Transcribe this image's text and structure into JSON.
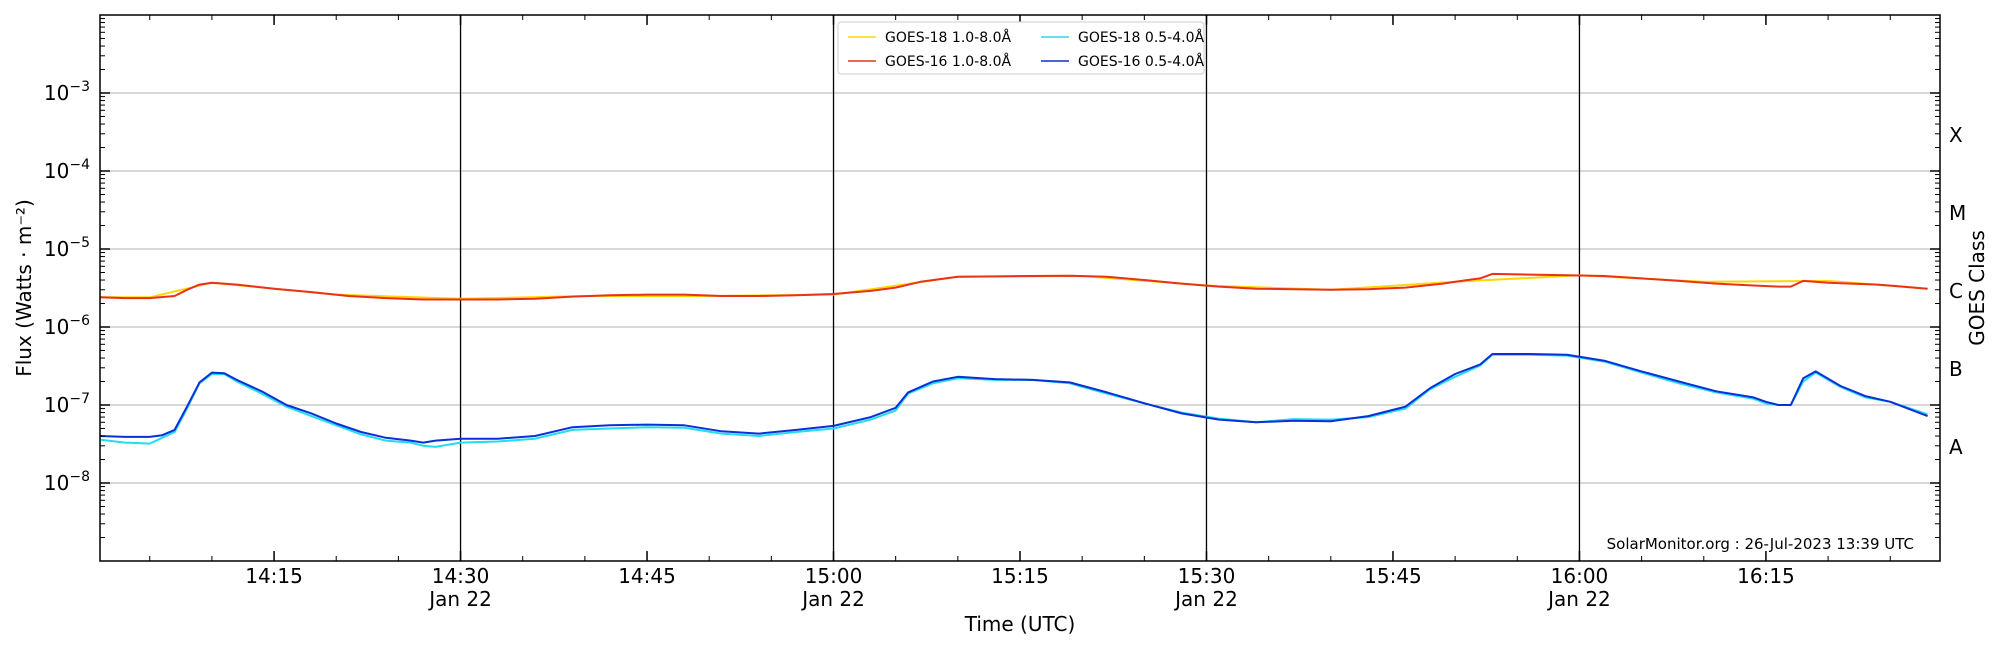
{
  "chart_data": {
    "type": "line",
    "title": "",
    "xlabel": "Time (UTC)",
    "ylabel": "Flux (Watts · m⁻²)",
    "ylabel_right": "GOES Class",
    "y_scale": "log",
    "ylim": [
      1e-09,
      0.01
    ],
    "xlim": [
      "2023-01-22 14:01",
      "2023-01-22 16:29"
    ],
    "grid": "horizontal",
    "legend_position": "top-center",
    "credit": "SolarMonitor.org : 26-Jul-2023 13:39 UTC",
    "y_ticks": [
      {
        "value": 1e-08,
        "base": "10",
        "exp": "−8"
      },
      {
        "value": 1e-07,
        "base": "10",
        "exp": "−7"
      },
      {
        "value": 1e-06,
        "base": "10",
        "exp": "−6"
      },
      {
        "value": 1e-05,
        "base": "10",
        "exp": "−5"
      },
      {
        "value": 0.0001,
        "base": "10",
        "exp": "−4"
      },
      {
        "value": 0.001,
        "base": "10",
        "exp": "−3"
      }
    ],
    "x_ticks": [
      {
        "time": "14:15",
        "label": "14:15",
        "date": ""
      },
      {
        "time": "14:30",
        "label": "14:30",
        "date": "Jan 22"
      },
      {
        "time": "14:45",
        "label": "14:45",
        "date": ""
      },
      {
        "time": "15:00",
        "label": "15:00",
        "date": "Jan 22"
      },
      {
        "time": "15:15",
        "label": "15:15",
        "date": ""
      },
      {
        "time": "15:30",
        "label": "15:30",
        "date": "Jan 22"
      },
      {
        "time": "15:45",
        "label": "15:45",
        "date": ""
      },
      {
        "time": "16:00",
        "label": "16:00",
        "date": "Jan 22"
      },
      {
        "time": "16:15",
        "label": "16:15",
        "date": ""
      }
    ],
    "day_lines": [
      "14:30",
      "15:00",
      "15:30",
      "16:00"
    ],
    "goes_classes": [
      {
        "label": "A",
        "value": 3e-08
      },
      {
        "label": "B",
        "value": 3e-07
      },
      {
        "label": "C",
        "value": 3e-06
      },
      {
        "label": "M",
        "value": 3e-05
      },
      {
        "label": "X",
        "value": 0.0003
      }
    ],
    "series": [
      {
        "name": "GOES-18 1.0-8.0Å",
        "color": "#ffd700",
        "x": [
          "14:01",
          "14:05",
          "14:10",
          "14:20",
          "14:30",
          "14:40",
          "14:50",
          "15:00",
          "15:10",
          "15:20",
          "15:30",
          "15:40",
          "15:50",
          "16:00",
          "16:10",
          "16:20",
          "16:28"
        ],
        "y": [
          2.4e-06,
          2.4e-06,
          3.7e-06,
          2.6e-06,
          2.3e-06,
          2.5e-06,
          2.5e-06,
          2.6e-06,
          4.4e-06,
          4.5e-06,
          3.4e-06,
          3e-06,
          3.8e-06,
          4.6e-06,
          3.8e-06,
          3.9e-06,
          3.1e-06
        ]
      },
      {
        "name": "GOES-16 1.0-8.0Å",
        "color": "#e8321a",
        "x": [
          "14:01",
          "14:03",
          "14:05",
          "14:07",
          "14:08",
          "14:09",
          "14:10",
          "14:12",
          "14:15",
          "14:18",
          "14:21",
          "14:24",
          "14:27",
          "14:30",
          "14:33",
          "14:36",
          "14:39",
          "14:42",
          "14:45",
          "14:48",
          "14:51",
          "14:54",
          "14:57",
          "15:00",
          "15:03",
          "15:05",
          "15:07",
          "15:10",
          "15:13",
          "15:16",
          "15:19",
          "15:22",
          "15:25",
          "15:28",
          "15:31",
          "15:34",
          "15:37",
          "15:40",
          "15:43",
          "15:46",
          "15:49",
          "15:51",
          "15:52",
          "15:53",
          "15:56",
          "15:59",
          "16:02",
          "16:05",
          "16:08",
          "16:11",
          "16:14",
          "16:16",
          "16:17",
          "16:18",
          "16:20",
          "16:24",
          "16:28"
        ],
        "y": [
          2.4e-06,
          2.35e-06,
          2.35e-06,
          2.5e-06,
          3e-06,
          3.5e-06,
          3.7e-06,
          3.5e-06,
          3.1e-06,
          2.8e-06,
          2.5e-06,
          2.35e-06,
          2.25e-06,
          2.25e-06,
          2.25e-06,
          2.3e-06,
          2.45e-06,
          2.55e-06,
          2.6e-06,
          2.6e-06,
          2.5e-06,
          2.5e-06,
          2.55e-06,
          2.65e-06,
          2.9e-06,
          3.2e-06,
          3.8e-06,
          4.4e-06,
          4.45e-06,
          4.5e-06,
          4.55e-06,
          4.4e-06,
          4e-06,
          3.6e-06,
          3.3e-06,
          3.1e-06,
          3.05e-06,
          3e-06,
          3.05e-06,
          3.2e-06,
          3.6e-06,
          4e-06,
          4.2e-06,
          4.8e-06,
          4.7e-06,
          4.6e-06,
          4.5e-06,
          4.2e-06,
          3.9e-06,
          3.6e-06,
          3.4e-06,
          3.3e-06,
          3.3e-06,
          3.9e-06,
          3.7e-06,
          3.5e-06,
          3.1e-06
        ]
      },
      {
        "name": "GOES-18 0.5-4.0Å",
        "color": "#22ddee",
        "x": [
          "14:01",
          "14:03",
          "14:05",
          "14:06",
          "14:07",
          "14:08",
          "14:09",
          "14:10",
          "14:11",
          "14:12",
          "14:14",
          "14:16",
          "14:18",
          "14:20",
          "14:22",
          "14:24",
          "14:26",
          "14:27",
          "14:28",
          "14:30",
          "14:33",
          "14:36",
          "14:39",
          "14:42",
          "14:45",
          "14:48",
          "14:51",
          "14:54",
          "14:57",
          "15:00",
          "15:03",
          "15:05",
          "15:06",
          "15:08",
          "15:10",
          "15:13",
          "15:16",
          "15:19",
          "15:22",
          "15:25",
          "15:28",
          "15:31",
          "15:34",
          "15:37",
          "15:40",
          "15:43",
          "15:46",
          "15:48",
          "15:50",
          "15:52",
          "15:53",
          "15:56",
          "15:59",
          "16:02",
          "16:05",
          "16:08",
          "16:11",
          "16:14",
          "16:15",
          "16:16",
          "16:17",
          "16:18",
          "16:19",
          "16:21",
          "16:23",
          "16:25",
          "16:28"
        ],
        "y": [
          3.6e-08,
          3.3e-08,
          3.2e-08,
          3.8e-08,
          4.5e-08,
          9e-08,
          1.9e-07,
          2.5e-07,
          2.5e-07,
          2e-07,
          1.4e-07,
          9.5e-08,
          7.2e-08,
          5.5e-08,
          4.2e-08,
          3.5e-08,
          3.3e-08,
          3e-08,
          2.9e-08,
          3.3e-08,
          3.4e-08,
          3.7e-08,
          4.8e-08,
          5e-08,
          5.2e-08,
          5.1e-08,
          4.3e-08,
          4e-08,
          4.5e-08,
          5e-08,
          6.5e-08,
          8.5e-08,
          1.4e-07,
          1.9e-07,
          2.2e-07,
          2.1e-07,
          2.1e-07,
          1.9e-07,
          1.4e-07,
          1.05e-07,
          8e-08,
          6.7e-08,
          6e-08,
          6.6e-08,
          6.5e-08,
          7e-08,
          9e-08,
          1.6e-07,
          2.3e-07,
          3.2e-07,
          4.4e-07,
          4.4e-07,
          4.3e-07,
          3.6e-07,
          2.6e-07,
          1.9e-07,
          1.45e-07,
          1.2e-07,
          1.05e-07,
          1e-07,
          1e-07,
          2e-07,
          2.6e-07,
          1.7e-07,
          1.25e-07,
          1.1e-07,
          7.6e-08
        ]
      },
      {
        "name": "GOES-16 0.5-4.0Å",
        "color": "#0b2fd9",
        "x": [
          "14:01",
          "14:03",
          "14:05",
          "14:06",
          "14:07",
          "14:08",
          "14:09",
          "14:10",
          "14:11",
          "14:12",
          "14:14",
          "14:16",
          "14:18",
          "14:20",
          "14:22",
          "14:24",
          "14:26",
          "14:27",
          "14:28",
          "14:30",
          "14:33",
          "14:36",
          "14:39",
          "14:42",
          "14:45",
          "14:48",
          "14:51",
          "14:54",
          "14:57",
          "15:00",
          "15:03",
          "15:05",
          "15:06",
          "15:08",
          "15:10",
          "15:13",
          "15:16",
          "15:19",
          "15:22",
          "15:25",
          "15:28",
          "15:31",
          "15:34",
          "15:37",
          "15:40",
          "15:43",
          "15:46",
          "15:48",
          "15:50",
          "15:52",
          "15:53",
          "15:56",
          "15:59",
          "16:02",
          "16:05",
          "16:08",
          "16:11",
          "16:14",
          "16:15",
          "16:16",
          "16:17",
          "16:18",
          "16:19",
          "16:21",
          "16:23",
          "16:25",
          "16:28"
        ],
        "y": [
          4e-08,
          3.9e-08,
          3.9e-08,
          4.1e-08,
          4.8e-08,
          9.5e-08,
          1.95e-07,
          2.6e-07,
          2.55e-07,
          2.1e-07,
          1.5e-07,
          1e-07,
          7.8e-08,
          5.8e-08,
          4.5e-08,
          3.8e-08,
          3.5e-08,
          3.3e-08,
          3.5e-08,
          3.7e-08,
          3.7e-08,
          4e-08,
          5.2e-08,
          5.5e-08,
          5.6e-08,
          5.5e-08,
          4.6e-08,
          4.3e-08,
          4.8e-08,
          5.4e-08,
          7e-08,
          9.2e-08,
          1.45e-07,
          2e-07,
          2.3e-07,
          2.15e-07,
          2.1e-07,
          1.95e-07,
          1.45e-07,
          1.05e-07,
          7.8e-08,
          6.5e-08,
          6e-08,
          6.3e-08,
          6.2e-08,
          7.2e-08,
          9.5e-08,
          1.65e-07,
          2.5e-07,
          3.3e-07,
          4.5e-07,
          4.5e-07,
          4.4e-07,
          3.7e-07,
          2.7e-07,
          2e-07,
          1.5e-07,
          1.25e-07,
          1.1e-07,
          1e-07,
          1e-07,
          2.2e-07,
          2.7e-07,
          1.75e-07,
          1.3e-07,
          1.1e-07,
          7.2e-08
        ]
      }
    ]
  }
}
